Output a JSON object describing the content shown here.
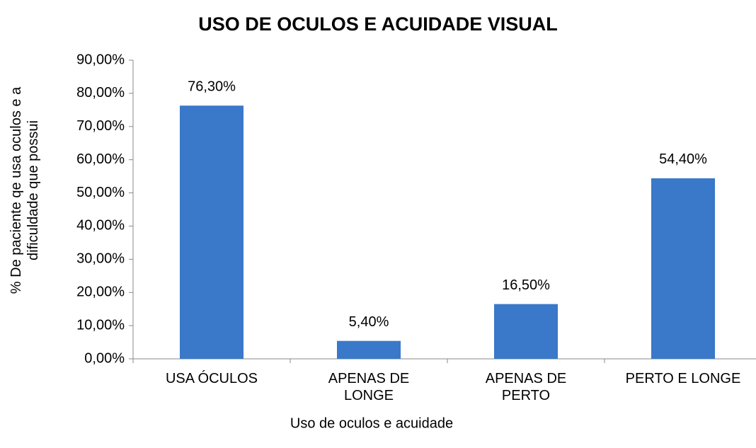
{
  "chart_data": {
    "type": "bar",
    "title": "USO DE OCULOS E ACUIDADE VISUAL",
    "x_label": "Uso de oculos e acuidade",
    "y_label": "% De paciente qe usa oculos e a dificuldade que  possui",
    "categories": [
      "USA ÓCULOS",
      "APENAS DE LONGE",
      "APENAS DE PERTO",
      "PERTO E LONGE"
    ],
    "values": [
      76.3,
      5.4,
      16.5,
      54.4
    ],
    "value_labels": [
      "76,30%",
      "5,40%",
      "16,50%",
      "54,40%"
    ],
    "color": "#3a78c9",
    "ylim": [
      0,
      90
    ],
    "yticks": [
      {
        "value": 0,
        "label": "0,00%"
      },
      {
        "value": 10,
        "label": "10,00%"
      },
      {
        "value": 20,
        "label": "20,00%"
      },
      {
        "value": 30,
        "label": "30,00%"
      },
      {
        "value": 40,
        "label": "40,00%"
      },
      {
        "value": 50,
        "label": "50,00%"
      },
      {
        "value": 60,
        "label": "60,00%"
      },
      {
        "value": 70,
        "label": "70,00%"
      },
      {
        "value": 80,
        "label": "80,00%"
      },
      {
        "value": 90,
        "label": "90,00%"
      }
    ],
    "grid": false
  }
}
